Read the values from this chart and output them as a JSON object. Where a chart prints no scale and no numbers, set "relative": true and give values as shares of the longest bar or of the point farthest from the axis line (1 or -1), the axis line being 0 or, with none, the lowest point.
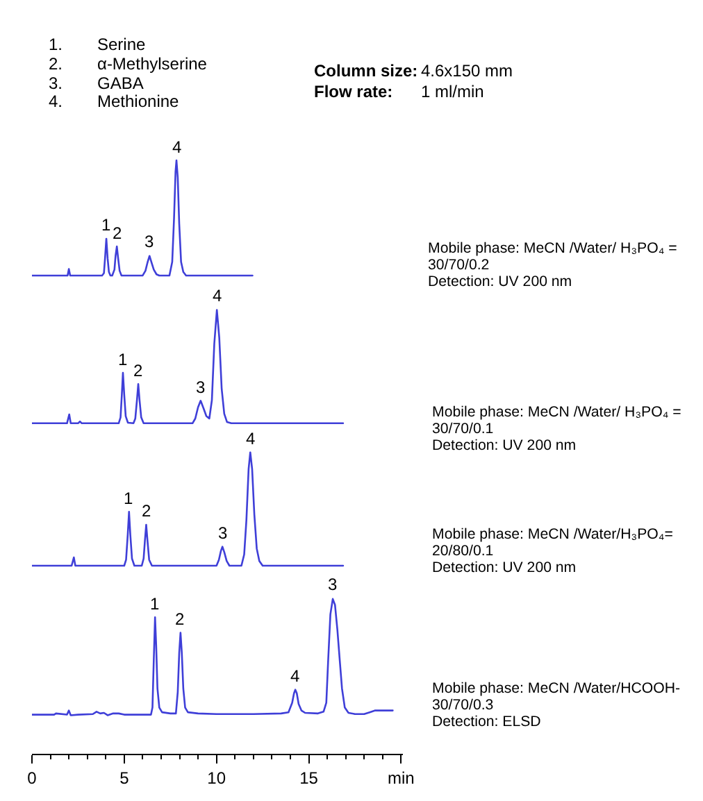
{
  "chart_data": {
    "type": "line",
    "relative": true,
    "xlim": [
      0,
      20.1
    ],
    "xticks": [
      0,
      {
        "value": 1,
        "label": null
      },
      {
        "value": 2,
        "label": null
      },
      {
        "value": 3,
        "label": null
      },
      {
        "value": 4,
        "label": null
      },
      5,
      {
        "value": 6,
        "label": null
      },
      {
        "value": 7,
        "label": null
      },
      {
        "value": 8,
        "label": null
      },
      {
        "value": 9,
        "label": null
      },
      10,
      {
        "value": 11,
        "label": null
      },
      {
        "value": 12,
        "label": null
      },
      {
        "value": 13,
        "label": null
      },
      {
        "value": 14,
        "label": null
      },
      15,
      {
        "value": 16,
        "label": null
      },
      {
        "value": 17,
        "label": null
      },
      {
        "value": 18,
        "label": null
      },
      {
        "value": 19,
        "label": null
      },
      {
        "value": 20,
        "label": "min"
      }
    ],
    "series": [
      {
        "color": "#3f3fd8",
        "x": [
          0,
          1.8,
          1.93,
          2.0,
          2.07,
          3.8,
          3.9,
          3.96,
          4.03,
          4.1,
          4.17,
          4.25,
          4.35,
          4.47,
          4.53,
          4.6,
          4.67,
          4.75,
          4.85,
          6.0,
          6.15,
          6.27,
          6.37,
          6.47,
          6.6,
          6.75,
          6.9,
          7.45,
          7.6,
          7.7,
          7.78,
          7.83,
          7.9,
          7.98,
          8.08,
          8.2,
          8.35,
          11.95
        ],
        "values": [
          0.806,
          0.806,
          0.806,
          0.817,
          0.806,
          0.806,
          0.81,
          0.835,
          0.868,
          0.835,
          0.812,
          0.806,
          0.806,
          0.816,
          0.839,
          0.855,
          0.835,
          0.814,
          0.806,
          0.806,
          0.814,
          0.829,
          0.839,
          0.829,
          0.816,
          0.808,
          0.806,
          0.806,
          0.829,
          0.903,
          0.981,
          1,
          0.971,
          0.893,
          0.829,
          0.812,
          0.806,
          0.806
        ]
      },
      {
        "color": "#3f3fd8",
        "x": [
          0,
          1.9,
          2.02,
          2.1,
          2.5,
          2.6,
          2.7,
          4.7,
          4.8,
          4.87,
          4.93,
          5.0,
          5.08,
          5.2,
          5.5,
          5.6,
          5.69,
          5.76,
          5.83,
          5.92,
          6.05,
          8.7,
          8.85,
          9.0,
          9.14,
          9.3,
          9.45,
          9.61,
          9.75,
          9.88,
          10.02,
          10.15,
          10.28,
          10.42,
          10.57,
          10.8,
          16.86
        ],
        "values": [
          0.557,
          0.557,
          0.572,
          0.557,
          0.557,
          0.56,
          0.557,
          0.557,
          0.567,
          0.605,
          0.642,
          0.605,
          0.569,
          0.558,
          0.557,
          0.565,
          0.596,
          0.623,
          0.596,
          0.567,
          0.557,
          0.557,
          0.565,
          0.584,
          0.595,
          0.582,
          0.569,
          0.565,
          0.596,
          0.691,
          0.748,
          0.701,
          0.615,
          0.573,
          0.559,
          0.557,
          0.557
        ]
      },
      {
        "color": "#3f3fd8",
        "x": [
          0,
          2.15,
          2.27,
          2.35,
          3.0,
          5.0,
          5.1,
          5.19,
          5.26,
          5.33,
          5.42,
          5.55,
          5.95,
          6.05,
          6.12,
          6.19,
          6.26,
          6.35,
          6.5,
          10.0,
          10.13,
          10.24,
          10.32,
          10.42,
          10.55,
          10.7,
          11.35,
          11.5,
          11.62,
          11.74,
          11.83,
          11.93,
          12.05,
          12.18,
          12.32,
          12.5,
          16.86
        ],
        "values": [
          0.317,
          0.317,
          0.331,
          0.317,
          0.317,
          0.317,
          0.327,
          0.369,
          0.408,
          0.369,
          0.329,
          0.317,
          0.317,
          0.329,
          0.359,
          0.386,
          0.359,
          0.327,
          0.317,
          0.317,
          0.327,
          0.342,
          0.349,
          0.34,
          0.325,
          0.317,
          0.317,
          0.336,
          0.394,
          0.48,
          0.508,
          0.48,
          0.403,
          0.346,
          0.325,
          0.317,
          0.317
        ]
      },
      {
        "color": "#3f3fd8",
        "x": [
          0,
          1.2,
          1.3,
          1.9,
          2.0,
          2.1,
          2.5,
          3.3,
          3.5,
          3.7,
          3.9,
          4.1,
          4.4,
          4.7,
          5.0,
          6.45,
          6.53,
          6.6,
          6.67,
          6.73,
          6.8,
          6.9,
          7.05,
          7.5,
          7.8,
          7.9,
          7.98,
          8.05,
          8.12,
          8.2,
          8.3,
          8.45,
          9.0,
          10,
          12,
          13.5,
          13.9,
          14.1,
          14.2,
          14.27,
          14.35,
          14.45,
          14.6,
          14.8,
          15.5,
          15.8,
          15.95,
          16.05,
          16.17,
          16.3,
          16.42,
          16.55,
          16.68,
          16.8,
          16.95,
          17.15,
          17.5,
          18.0,
          18.3,
          18.6,
          19.55
        ],
        "values": [
          0.066,
          0.066,
          0.068,
          0.066,
          0.073,
          0.065,
          0.066,
          0.067,
          0.071,
          0.068,
          0.069,
          0.065,
          0.068,
          0.068,
          0.066,
          0.066,
          0.078,
          0.157,
          0.23,
          0.183,
          0.11,
          0.078,
          0.07,
          0.068,
          0.068,
          0.104,
          0.17,
          0.204,
          0.17,
          0.11,
          0.078,
          0.07,
          0.068,
          0.067,
          0.067,
          0.068,
          0.07,
          0.086,
          0.102,
          0.108,
          0.102,
          0.084,
          0.073,
          0.069,
          0.068,
          0.071,
          0.086,
          0.157,
          0.235,
          0.261,
          0.251,
          0.209,
          0.157,
          0.11,
          0.078,
          0.069,
          0.067,
          0.067,
          0.07,
          0.073,
          0.073
        ]
      }
    ],
    "annotations": [
      "1.",
      "Serine",
      "2.",
      "α-Methylserine",
      "3.",
      "GABA",
      "4.",
      "Methionine",
      "Column size:",
      "4.6x150 mm",
      "Flow rate:",
      "1 ml/min",
      {
        "text": "1",
        "x": 4.03,
        "y": 0.868
      },
      {
        "text": "2",
        "x": 4.6,
        "y": 0.855
      },
      {
        "text": "3",
        "x": 6.37,
        "y": 0.839
      },
      {
        "text": "4",
        "x": 7.83,
        "y": 1
      },
      {
        "text": "1",
        "x": 4.93,
        "y": 0.642
      },
      {
        "text": "2",
        "x": 5.76,
        "y": 0.623
      },
      {
        "text": "3",
        "x": 9.14,
        "y": 0.595
      },
      {
        "text": "4",
        "x": 10.02,
        "y": 0.748
      },
      {
        "text": "1",
        "x": 5.26,
        "y": 0.408
      },
      {
        "text": "2",
        "x": 6.19,
        "y": 0.386
      },
      {
        "text": "3",
        "x": 10.32,
        "y": 0.349
      },
      {
        "text": "4",
        "x": 11.83,
        "y": 0.508
      },
      {
        "text": "1",
        "x": 6.67,
        "y": 0.23
      },
      {
        "text": "2",
        "x": 8.05,
        "y": 0.204
      },
      {
        "text": "4",
        "x": 14.27,
        "y": 0.108
      },
      {
        "text": "3",
        "x": 16.3,
        "y": 0.261
      },
      "Mobile phase: MeCN /Water/ H₃PO₄ =",
      "30/70/0.2",
      "Detection: UV 200 nm",
      "Mobile phase: MeCN /Water/ H₃PO₄ =",
      "30/70/0.1",
      "Detection: UV 200 nm",
      "Mobile phase: MeCN /Water/H₃PO₄=",
      "20/80/0.1",
      "Detection: UV 200 nm",
      "Mobile phase: MeCN /Water/HCOOH-",
      "30/70/0.3",
      "Detection: ELSD"
    ]
  }
}
